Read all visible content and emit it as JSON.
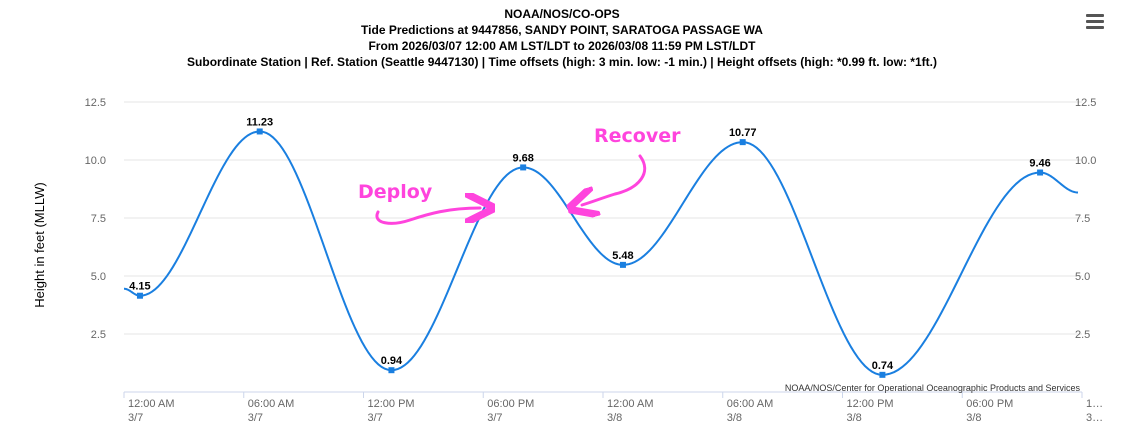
{
  "header": {
    "title": "NOAA/NOS/CO-OPS",
    "subtitle1": "Tide Predictions at 9447856, SANDY POINT, SARATOGA PASSAGE WA",
    "subtitle2": "From 2026/03/07 12:00 AM LST/LDT to 2026/03/08 11:59 PM LST/LDT",
    "subtitle3": "Subordinate Station | Ref. Station (Seattle 9447130) | Time offsets (high: 3 min. low: -1 min.) | Height offsets (high: *0.99 ft. low: *1ft.)"
  },
  "credits": "NOAA/NOS/Center for Operational Oceanographic Products and Services",
  "annotations": {
    "deploy": "Deploy",
    "recover": "Recover"
  },
  "colors": {
    "line": "#1a7fe0",
    "grid": "#e6e6e6",
    "annotation": "#ff44dd"
  },
  "chart_data": {
    "type": "line",
    "ylabel": "Height in feet (MLLW)",
    "ylim": [
      0,
      12.5
    ],
    "yticks": [
      "2.5",
      "5.0",
      "7.5",
      "10.0",
      "12.5"
    ],
    "xticks": [
      {
        "hours": 0,
        "time": "12:00 AM",
        "date": "3/7"
      },
      {
        "hours": 6,
        "time": "06:00 AM",
        "date": "3/7"
      },
      {
        "hours": 12,
        "time": "12:00 PM",
        "date": "3/7"
      },
      {
        "hours": 18,
        "time": "06:00 PM",
        "date": "3/7"
      },
      {
        "hours": 24,
        "time": "12:00 AM",
        "date": "3/8"
      },
      {
        "hours": 30,
        "time": "06:00 AM",
        "date": "3/8"
      },
      {
        "hours": 36,
        "time": "12:00 PM",
        "date": "3/8"
      },
      {
        "hours": 42,
        "time": "06:00 PM",
        "date": "3/8"
      },
      {
        "hours": 48,
        "time": "1…",
        "date": "3…"
      }
    ],
    "x_range_hours": [
      0,
      48
    ],
    "series": [
      {
        "points": [
          {
            "hours": 0.0,
            "value": 4.45
          },
          {
            "hours": 0.8,
            "value": 4.15,
            "label": "4.15"
          },
          {
            "hours": 6.8,
            "value": 11.23,
            "label": "11.23"
          },
          {
            "hours": 13.4,
            "value": 0.94,
            "label": "0.94"
          },
          {
            "hours": 20.0,
            "value": 9.68,
            "label": "9.68"
          },
          {
            "hours": 25.0,
            "value": 5.48,
            "label": "5.48"
          },
          {
            "hours": 31.0,
            "value": 10.77,
            "label": "10.77"
          },
          {
            "hours": 38.0,
            "value": 0.74,
            "label": "0.74"
          },
          {
            "hours": 45.9,
            "value": 9.46,
            "label": "9.46"
          },
          {
            "hours": 47.8,
            "value": 8.6
          }
        ]
      }
    ]
  }
}
